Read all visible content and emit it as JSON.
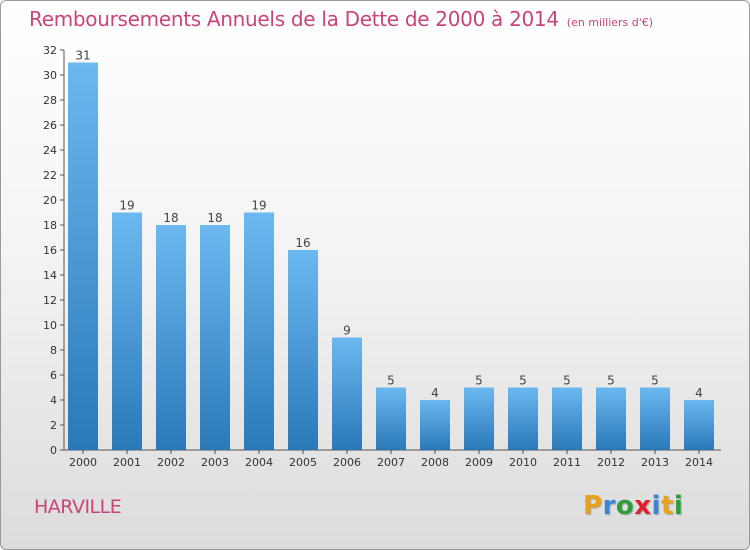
{
  "chart_data": {
    "type": "bar",
    "title": "Remboursements Annuels de la Dette de 2000 à 2014",
    "subtitle": "(en milliers d'€)",
    "categories": [
      "2000",
      "2001",
      "2002",
      "2003",
      "2004",
      "2005",
      "2006",
      "2007",
      "2008",
      "2009",
      "2010",
      "2011",
      "2012",
      "2013",
      "2014"
    ],
    "values": [
      31,
      19,
      18,
      18,
      19,
      16,
      9,
      5,
      4,
      5,
      5,
      5,
      5,
      5,
      4
    ],
    "data_labels": [
      "31",
      "19",
      "18",
      "18",
      "19",
      "16",
      "9",
      "5",
      "4",
      "5",
      "5",
      "5",
      "5",
      "5",
      "4"
    ],
    "yticks": [
      "0",
      "2",
      "4",
      "6",
      "8",
      "10",
      "12",
      "14",
      "16",
      "18",
      "20",
      "22",
      "24",
      "26",
      "28",
      "30",
      "32"
    ],
    "ylim": [
      0,
      32
    ],
    "xlabel": "",
    "ylabel": "",
    "grid": false,
    "bar_color_top": "#6cb8f0",
    "bar_color_bottom": "#2a78b8"
  },
  "footer": {
    "commune": "HARVILLE",
    "logo_text": "Proxiti",
    "logo_colors": [
      "#e8a21b",
      "#3a86d6",
      "#2d9e3a",
      "#e0202a",
      "#3a86d6",
      "#e8a21b",
      "#2d9e3a"
    ]
  }
}
